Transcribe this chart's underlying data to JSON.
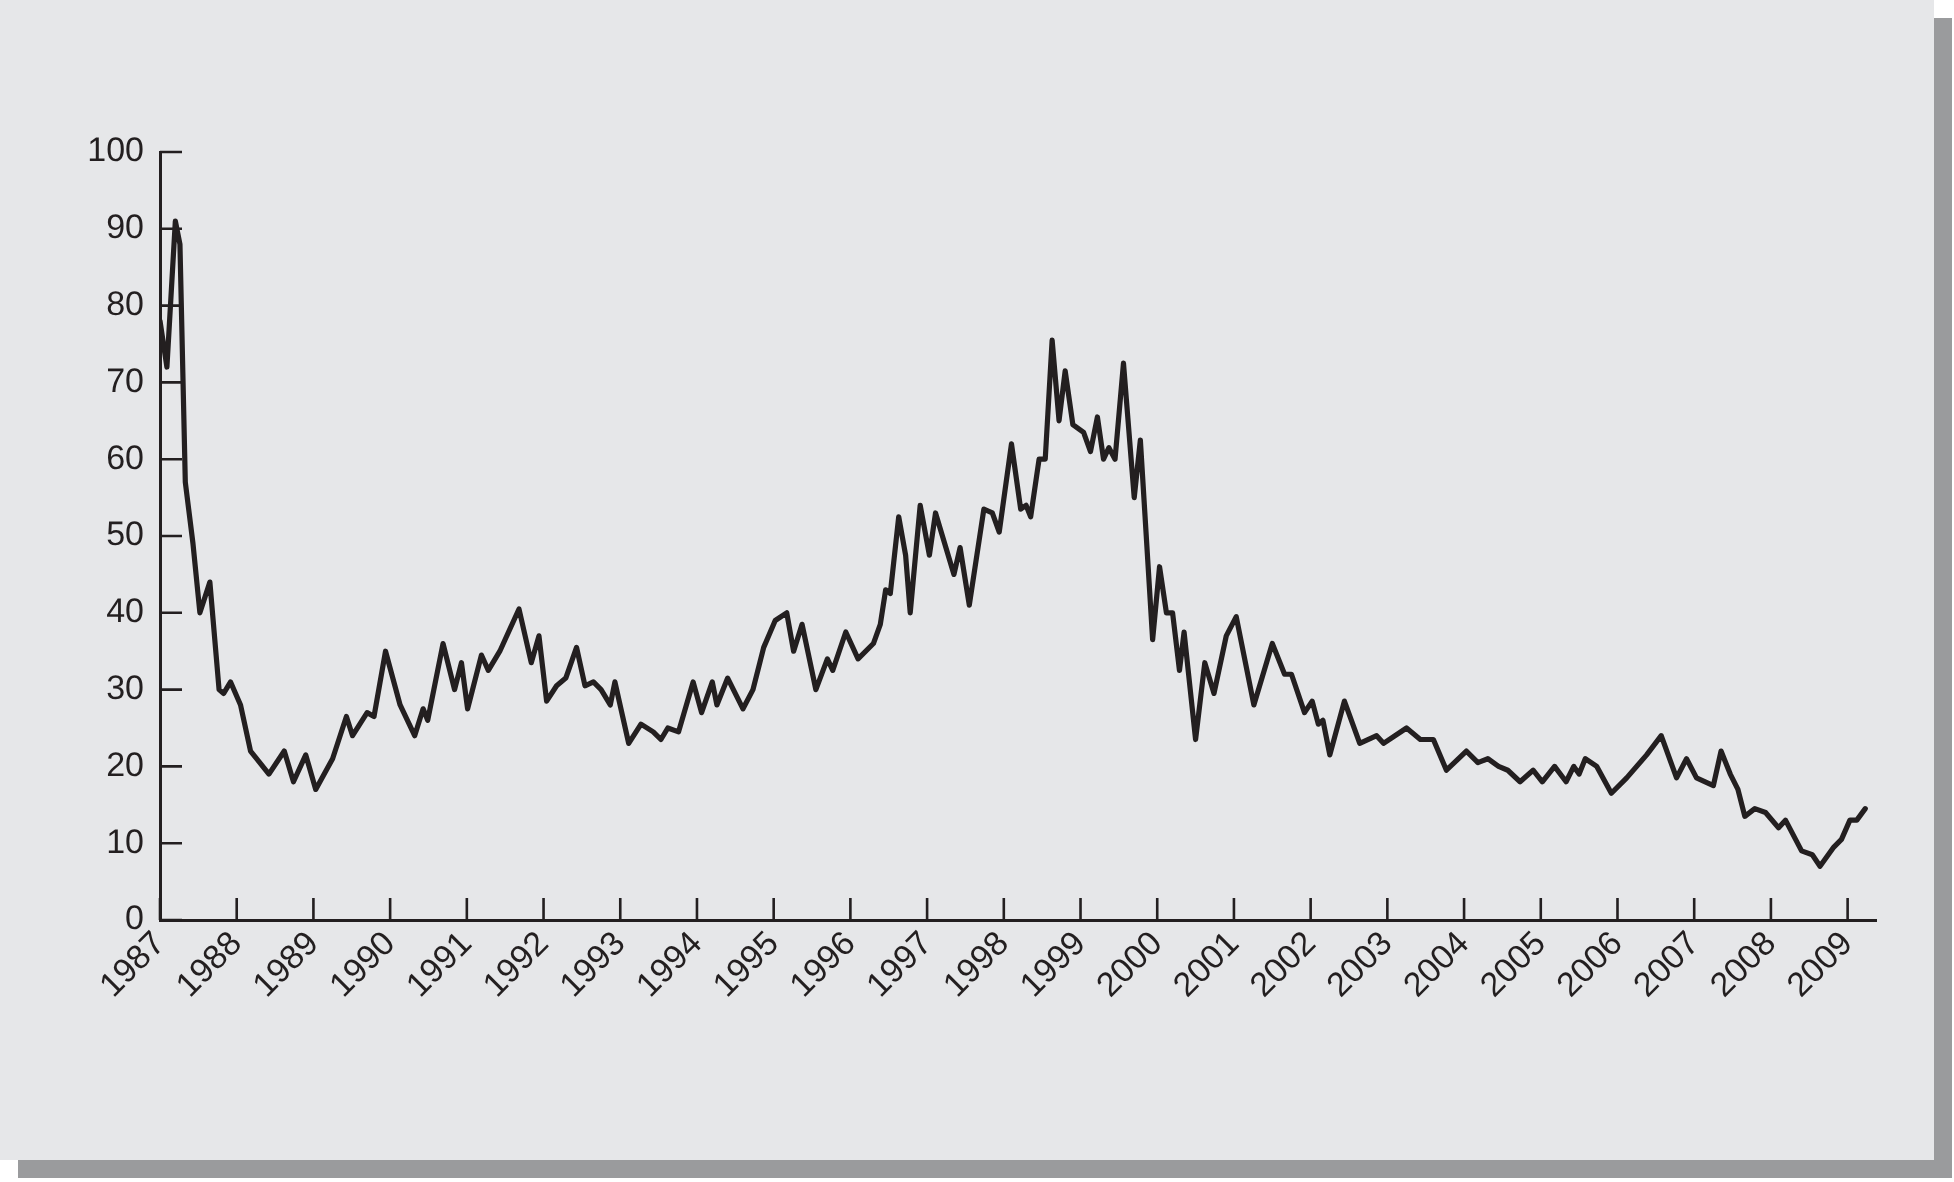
{
  "chart_data": {
    "type": "line",
    "xlim": [
      1987,
      2009.37
    ],
    "xticks": [
      1987,
      1988,
      1989,
      1990,
      1991,
      1992,
      1993,
      1994,
      1995,
      1996,
      1997,
      1998,
      1999,
      2000,
      2001,
      2002,
      2003,
      2004,
      2005,
      2006,
      2007,
      2008,
      2009
    ],
    "ylim": [
      0,
      100
    ],
    "yticks": [
      0,
      10,
      20,
      30,
      40,
      50,
      60,
      70,
      80,
      90,
      100
    ],
    "grid": false,
    "legend": false,
    "marker": "none",
    "line_style": "solid",
    "series": [
      {
        "color": "#231f20",
        "x": [
          1987.0,
          1987.09,
          1987.2,
          1987.26,
          1987.33,
          1987.43,
          1987.52,
          1987.65,
          1987.77,
          1987.83,
          1987.92,
          1988.05,
          1988.18,
          1988.42,
          1988.62,
          1988.74,
          1988.9,
          1989.03,
          1989.25,
          1989.43,
          1989.51,
          1989.7,
          1989.79,
          1989.94,
          1990.13,
          1990.32,
          1990.43,
          1990.49,
          1990.69,
          1990.84,
          1990.93,
          1991.01,
          1991.19,
          1991.28,
          1991.43,
          1991.68,
          1991.84,
          1991.94,
          1992.04,
          1992.17,
          1992.29,
          1992.43,
          1992.54,
          1992.65,
          1992.75,
          1992.87,
          1992.93,
          1993.11,
          1993.27,
          1993.43,
          1993.53,
          1993.62,
          1993.76,
          1993.95,
          1994.06,
          1994.2,
          1994.26,
          1994.4,
          1994.6,
          1994.73,
          1994.87,
          1995.02,
          1995.17,
          1995.26,
          1995.37,
          1995.55,
          1995.7,
          1995.77,
          1995.94,
          1996.1,
          1996.3,
          1996.39,
          1996.46,
          1996.52,
          1996.63,
          1996.72,
          1996.78,
          1996.91,
          1997.03,
          1997.11,
          1997.35,
          1997.43,
          1997.55,
          1997.74,
          1997.85,
          1997.94,
          1998.1,
          1998.22,
          1998.29,
          1998.35,
          1998.46,
          1998.54,
          1998.63,
          1998.72,
          1998.8,
          1998.9,
          1999.04,
          1999.13,
          1999.22,
          1999.3,
          1999.37,
          1999.45,
          1999.56,
          1999.7,
          1999.78,
          1999.94,
          2000.03,
          2000.12,
          2000.2,
          2000.29,
          2000.35,
          2000.5,
          2000.62,
          2000.74,
          2000.9,
          2001.03,
          2001.26,
          2001.5,
          2001.66,
          2001.75,
          2001.92,
          2002.02,
          2002.1,
          2002.16,
          2002.25,
          2002.44,
          2002.64,
          2002.86,
          2002.95,
          2003.25,
          2003.43,
          2003.6,
          2003.77,
          2004.03,
          2004.18,
          2004.31,
          2004.45,
          2004.57,
          2004.73,
          2004.9,
          2005.02,
          2005.18,
          2005.33,
          2005.43,
          2005.5,
          2005.58,
          2005.73,
          2005.92,
          2006.12,
          2006.38,
          2006.57,
          2006.77,
          2006.9,
          2007.03,
          2007.25,
          2007.35,
          2007.47,
          2007.57,
          2007.66,
          2007.79,
          2007.93,
          2008.1,
          2008.19,
          2008.4,
          2008.54,
          2008.64,
          2008.82,
          2008.92,
          2009.03,
          2009.12,
          2009.23
        ],
        "values": [
          78,
          72,
          91,
          88,
          57,
          49,
          40,
          44,
          30,
          29.5,
          31,
          28,
          22,
          19,
          22,
          18,
          21.5,
          17,
          21,
          26.5,
          24,
          27,
          26.5,
          35,
          28,
          24,
          27.5,
          26,
          36,
          30,
          33.5,
          27.5,
          34.5,
          32.5,
          35,
          40.5,
          33.5,
          37,
          28.5,
          30.5,
          31.5,
          35.5,
          30.5,
          31,
          30,
          28,
          31,
          23,
          25.5,
          24.5,
          23.5,
          25,
          24.5,
          31,
          27,
          31,
          28,
          31.5,
          27.5,
          30,
          35.5,
          39,
          40,
          35,
          38.5,
          30,
          34,
          32.5,
          37.5,
          34,
          36,
          38.5,
          43,
          42.5,
          52.5,
          47.5,
          40,
          54,
          47.5,
          53,
          45,
          48.5,
          41,
          53.5,
          53,
          50.5,
          62,
          53.5,
          54,
          52.5,
          60,
          60,
          75.5,
          65,
          71.5,
          64.5,
          63.5,
          61,
          65.5,
          60,
          61.5,
          60,
          72.5,
          55,
          62.5,
          36.5,
          46,
          40,
          40,
          32.5,
          37.5,
          23.5,
          33.5,
          29.5,
          37,
          39.5,
          28,
          36,
          32,
          32,
          27,
          28.5,
          25.5,
          26,
          21.5,
          28.5,
          23,
          24,
          23,
          25,
          23.5,
          23.5,
          19.5,
          22,
          20.5,
          21,
          20,
          19.5,
          18,
          19.5,
          18,
          20,
          18,
          20,
          19,
          21,
          20,
          16.5,
          18.5,
          21.5,
          24,
          18.5,
          21,
          18.5,
          17.5,
          22,
          19,
          17,
          13.5,
          14.5,
          14,
          12,
          13,
          9,
          8.5,
          7,
          9.5,
          10.5,
          13,
          13,
          14.5
        ]
      }
    ]
  }
}
